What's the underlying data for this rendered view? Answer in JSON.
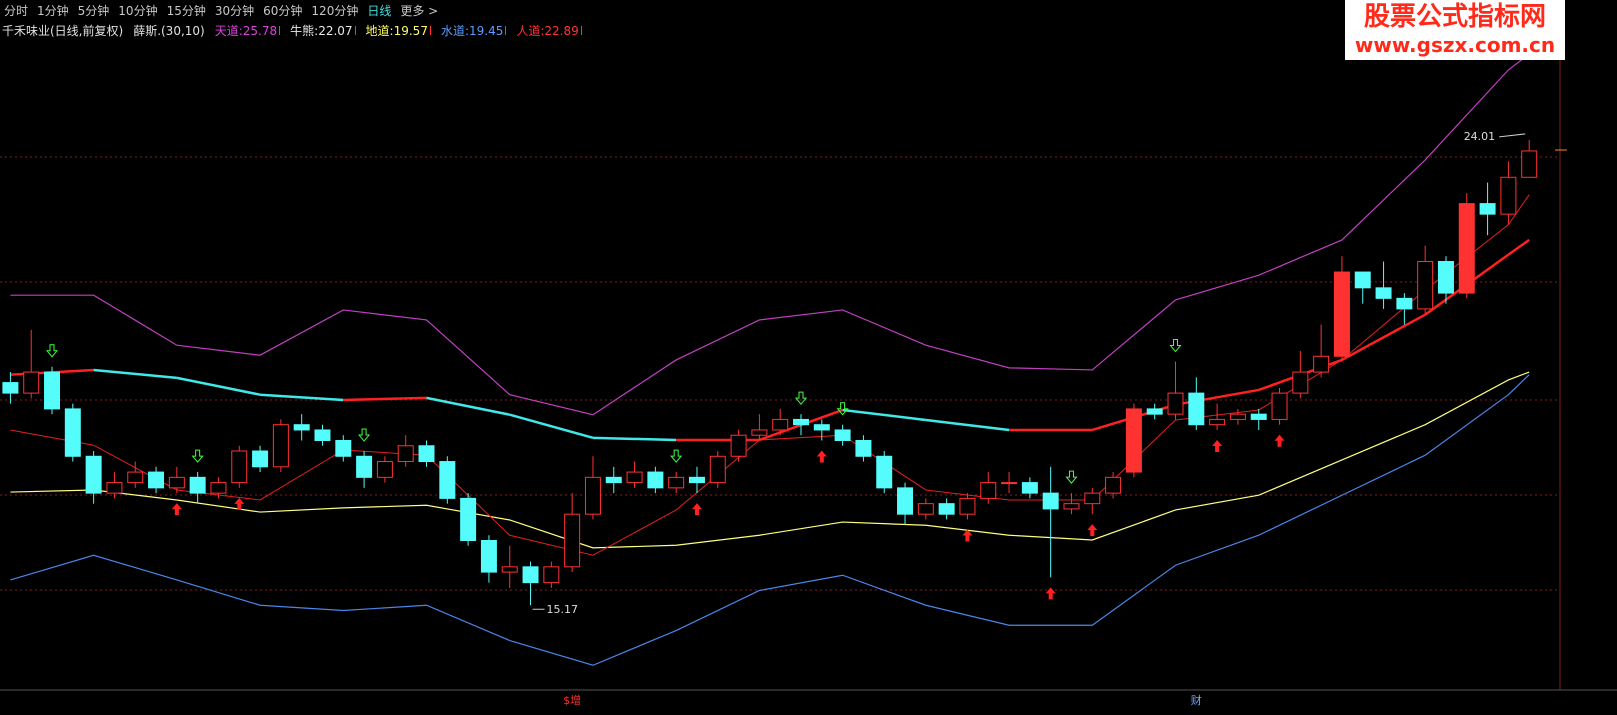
{
  "toolbar": {
    "items": [
      "分时",
      "1分钟",
      "5分钟",
      "10分钟",
      "15分钟",
      "30分钟",
      "60分钟",
      "120分钟",
      "日线",
      "更多 >"
    ],
    "active": 8
  },
  "header": {
    "title": "千禾味业(日线,前复权)",
    "indicator": "薛斯.(30,10)",
    "readouts": [
      {
        "label": "天道:",
        "value": "25.78",
        "color": "#e040e0"
      },
      {
        "label": "牛熊:",
        "value": "22.07",
        "color": "#e8e8e8"
      },
      {
        "label": "地道:",
        "value": "19.57",
        "color": "#ffff66"
      },
      {
        "label": "水道:",
        "value": "19.45",
        "color": "#5a9cff"
      },
      {
        "label": "人道:",
        "value": "22.89",
        "color": "#ff3232"
      }
    ]
  },
  "watermark": {
    "title": "股票公式指标网",
    "url": "www.gszx.com.cn"
  },
  "chart_data": {
    "type": "candlestick",
    "open": [
      19.4,
      19.2,
      19.6,
      18.9,
      18.0,
      17.3,
      17.5,
      17.7,
      17.4,
      17.6,
      17.3,
      17.5,
      18.1,
      17.8,
      18.6,
      18.5,
      18.3,
      18.0,
      17.6,
      17.9,
      18.2,
      17.9,
      17.2,
      16.4,
      15.8,
      15.9,
      15.6,
      15.9,
      16.9,
      17.6,
      17.5,
      17.7,
      17.4,
      17.6,
      17.5,
      18.0,
      18.4,
      18.5,
      18.7,
      18.6,
      18.5,
      18.3,
      18.0,
      17.4,
      16.9,
      17.1,
      16.9,
      17.2,
      17.5,
      17.5,
      17.3,
      17.0,
      17.1,
      17.3,
      17.7,
      18.9,
      18.8,
      19.2,
      18.6,
      18.7,
      18.8,
      18.7,
      19.2,
      19.6,
      19.9,
      21.5,
      21.2,
      21.0,
      20.8,
      21.7,
      21.1,
      22.8,
      22.6,
      23.3
    ],
    "high": [
      19.6,
      20.4,
      19.7,
      19.0,
      18.1,
      17.7,
      17.9,
      17.8,
      17.8,
      17.7,
      17.6,
      18.2,
      18.2,
      18.7,
      18.8,
      18.6,
      18.4,
      18.1,
      18.0,
      18.4,
      18.3,
      18.0,
      17.3,
      16.5,
      16.3,
      16.0,
      16.0,
      17.3,
      18.0,
      17.8,
      17.9,
      17.8,
      17.7,
      17.8,
      18.1,
      18.5,
      18.8,
      18.9,
      18.8,
      18.7,
      18.6,
      18.4,
      18.1,
      17.5,
      17.2,
      17.2,
      17.3,
      17.7,
      17.7,
      17.6,
      17.8,
      17.3,
      17.4,
      17.7,
      19.0,
      19.0,
      19.8,
      19.5,
      19.0,
      18.9,
      18.9,
      19.3,
      20.0,
      20.5,
      21.8,
      21.5,
      21.7,
      21.1,
      22.0,
      21.8,
      23.0,
      23.2,
      23.6,
      24.01
    ],
    "low": [
      19.0,
      19.1,
      18.8,
      17.9,
      17.1,
      17.2,
      17.4,
      17.3,
      17.3,
      17.1,
      17.2,
      17.4,
      17.7,
      17.7,
      18.3,
      18.2,
      17.9,
      17.4,
      17.5,
      17.8,
      17.8,
      17.1,
      16.3,
      15.6,
      15.5,
      15.17,
      15.5,
      15.8,
      16.8,
      17.3,
      17.4,
      17.3,
      17.3,
      17.3,
      17.4,
      17.9,
      18.3,
      18.4,
      18.4,
      18.3,
      18.2,
      17.9,
      17.3,
      16.7,
      16.8,
      16.8,
      16.8,
      17.1,
      17.3,
      17.2,
      15.7,
      16.9,
      16.9,
      17.2,
      17.6,
      18.7,
      18.7,
      18.5,
      18.5,
      18.6,
      18.5,
      18.6,
      19.1,
      19.5,
      19.8,
      20.9,
      20.8,
      20.5,
      20.7,
      20.9,
      21.0,
      22.2,
      22.4,
      23.4
    ],
    "close": [
      19.2,
      19.6,
      18.9,
      18.0,
      17.3,
      17.5,
      17.7,
      17.4,
      17.6,
      17.3,
      17.5,
      18.1,
      17.8,
      18.6,
      18.5,
      18.3,
      18.0,
      17.6,
      17.9,
      18.2,
      17.9,
      17.2,
      16.4,
      15.8,
      15.9,
      15.6,
      15.9,
      16.9,
      17.6,
      17.5,
      17.7,
      17.4,
      17.6,
      17.5,
      18.0,
      18.4,
      18.5,
      18.7,
      18.6,
      18.5,
      18.3,
      18.0,
      17.4,
      16.9,
      17.1,
      16.9,
      17.2,
      17.5,
      17.5,
      17.3,
      17.0,
      17.1,
      17.3,
      17.6,
      18.9,
      18.8,
      19.2,
      18.6,
      18.7,
      18.8,
      18.7,
      19.2,
      19.6,
      19.9,
      21.5,
      21.2,
      21.0,
      20.8,
      21.7,
      21.1,
      22.8,
      22.6,
      23.3,
      23.8
    ],
    "up_color": "#ff3232",
    "down_color": "#54fcfc",
    "xlim": [
      -0.5,
      74
    ],
    "ylim": [
      13.56,
      26.25
    ],
    "lines": {
      "x": [
        0,
        4,
        8,
        12,
        16,
        20,
        24,
        28,
        32,
        36,
        40,
        44,
        48,
        52,
        56,
        60,
        64,
        68,
        72,
        73
      ],
      "series": [
        {
          "color": "#c040c0",
          "values": [
            21.06,
            21.06,
            20.11,
            19.92,
            20.78,
            20.59,
            19.17,
            18.79,
            19.83,
            20.59,
            20.78,
            20.11,
            19.68,
            19.64,
            20.97,
            21.44,
            22.11,
            23.63,
            25.34,
            25.64
          ]
        },
        {
          "color": "#ffff80",
          "values": [
            17.32,
            17.36,
            17.17,
            16.94,
            17.02,
            17.07,
            16.79,
            16.26,
            16.31,
            16.5,
            16.75,
            16.69,
            16.5,
            16.41,
            16.98,
            17.26,
            17.93,
            18.6,
            19.45,
            19.6
          ]
        },
        {
          "color": "#4a86e8",
          "values": [
            15.65,
            16.12,
            15.65,
            15.17,
            15.07,
            15.17,
            14.5,
            14.03,
            14.69,
            15.45,
            15.74,
            15.17,
            14.79,
            14.79,
            15.93,
            16.5,
            17.26,
            18.02,
            19.17,
            19.55
          ]
        },
        {
          "color": "#e02020",
          "values": [
            18.5,
            18.21,
            17.36,
            17.17,
            18.12,
            18.02,
            16.5,
            16.12,
            16.98,
            18.31,
            18.4,
            17.36,
            17.17,
            17.17,
            18.69,
            18.88,
            19.83,
            21.16,
            22.4,
            22.97
          ]
        }
      ],
      "trend": {
        "up_color": "#ff2020",
        "down_color": "#40e8e8",
        "values": [
          19.55,
          19.64,
          19.49,
          19.17,
          19.07,
          19.11,
          18.79,
          18.35,
          18.31,
          18.31,
          18.88,
          18.69,
          18.5,
          18.5,
          18.98,
          19.26,
          19.83,
          20.69,
          21.83,
          22.11
        ]
      }
    },
    "buy_signals": [
      8,
      11,
      33,
      39,
      46,
      50,
      52,
      58,
      61
    ],
    "sell_signals": [
      2,
      9,
      17,
      32,
      38,
      40,
      51,
      56
    ],
    "bottom_labels": [
      {
        "label": "$增",
        "x": 27,
        "color": "#ff3030"
      },
      {
        "label": "财",
        "x": 57,
        "color": "#6aa8ff"
      }
    ]
  }
}
